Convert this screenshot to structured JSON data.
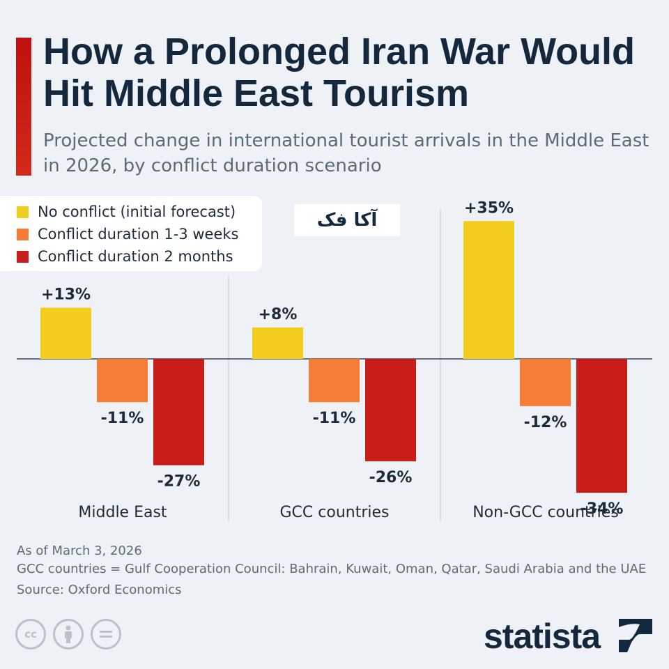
{
  "header": {
    "title": "How a Prolonged Iran War Would Hit Middle East Tourism",
    "subtitle": "Projected change in international tourist arrivals in the Middle East in 2026, by conflict duration scenario"
  },
  "legend": [
    {
      "label": "No conflict (initial forecast)",
      "color": "#f2cd1d"
    },
    {
      "label": "Conflict duration 1-3 weeks",
      "color": "#f57d35"
    },
    {
      "label": "Conflict duration 2 months",
      "color": "#c81d19"
    }
  ],
  "watermark": {
    "text": "آکا فک"
  },
  "chart_data": {
    "type": "bar",
    "categories": [
      "Middle East",
      "GCC countries",
      "Non-GCC countries"
    ],
    "series": [
      {
        "name": "No conflict (initial forecast)",
        "values": [
          13,
          8,
          35
        ],
        "labels": [
          "+13%",
          "+8%",
          "+35%"
        ],
        "color": "#f2cd1d"
      },
      {
        "name": "Conflict duration 1-3 weeks",
        "values": [
          -11,
          -11,
          -12
        ],
        "labels": [
          "-11%",
          "-11%",
          "-12%"
        ],
        "color": "#f57d35"
      },
      {
        "name": "Conflict duration 2 months",
        "values": [
          -27,
          -26,
          -34
        ],
        "labels": [
          "-27%",
          "-26%",
          "-34%"
        ],
        "color": "#c81d19"
      }
    ],
    "unit": "%",
    "ylim": [
      -34,
      35
    ],
    "grid": false,
    "legend_position": "top-left"
  },
  "footnotes": {
    "date": "As of March 3, 2026",
    "note": "GCC countries = Gulf Cooperation Council: Bahrain, Kuwait, Oman, Qatar, Saudi Arabia and the UAE",
    "source": "Source: Oxford Economics"
  },
  "footer": {
    "license_icons": [
      "cc-icon",
      "attribution-icon",
      "no-derivatives-icon"
    ],
    "brand": "statista"
  }
}
